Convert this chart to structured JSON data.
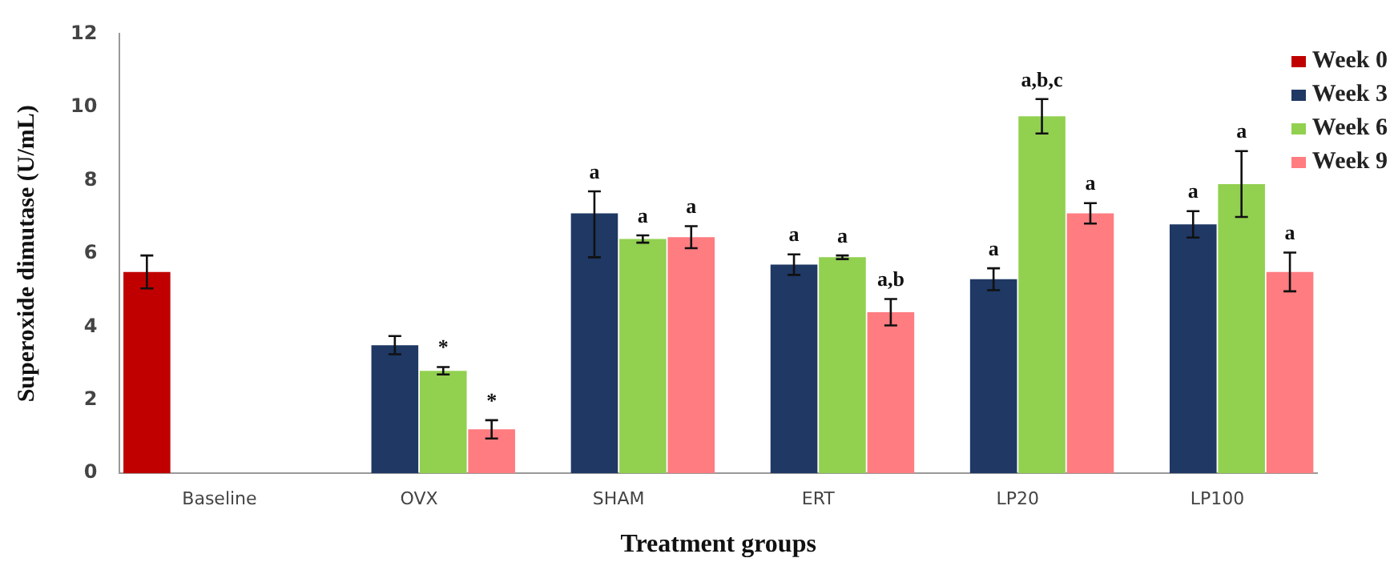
{
  "chart_data": {
    "type": "bar",
    "xlabel": "Treatment groups",
    "ylabel": "Superoxide dimutase (U/mL)",
    "categories": [
      "Baseline",
      "OVX",
      "SHAM",
      "ERT",
      "LP20",
      "LP100"
    ],
    "ylim": [
      0,
      12
    ],
    "yticks": [
      0,
      2,
      4,
      6,
      8,
      10,
      12
    ],
    "grid": false,
    "legend": "top right",
    "series": [
      {
        "name": "Week 0",
        "color": "#c00000",
        "values": [
          5.5,
          null,
          null,
          null,
          null,
          null
        ],
        "errors": [
          0.45,
          null,
          null,
          null,
          null,
          null
        ],
        "value_labels": [
          null,
          null,
          null,
          null,
          null,
          null
        ]
      },
      {
        "name": "Week 3",
        "color": "#1f3864",
        "values": [
          null,
          3.5,
          7.1,
          5.7,
          5.3,
          6.8
        ],
        "errors": [
          null,
          0.25,
          [
            5.9,
            7.7
          ],
          0.28,
          0.3,
          0.36
        ],
        "value_labels": [
          null,
          null,
          "a",
          "a",
          "a",
          "a"
        ]
      },
      {
        "name": "Week 6",
        "color": "#92d050",
        "values": [
          null,
          2.8,
          6.4,
          5.9,
          9.75,
          7.9
        ],
        "errors": [
          null,
          0.1,
          0.1,
          0.05,
          0.47,
          0.9
        ],
        "value_labels": [
          null,
          "*",
          "a",
          "a",
          "a,b,c",
          "a"
        ]
      },
      {
        "name": "Week 9",
        "color": "#ff7c80",
        "values": [
          null,
          1.2,
          6.45,
          4.4,
          7.1,
          5.5
        ],
        "errors": [
          null,
          0.25,
          0.3,
          0.36,
          0.28,
          0.53
        ],
        "value_labels": [
          null,
          "*",
          "a",
          "a,b",
          "a",
          "a"
        ]
      }
    ]
  }
}
